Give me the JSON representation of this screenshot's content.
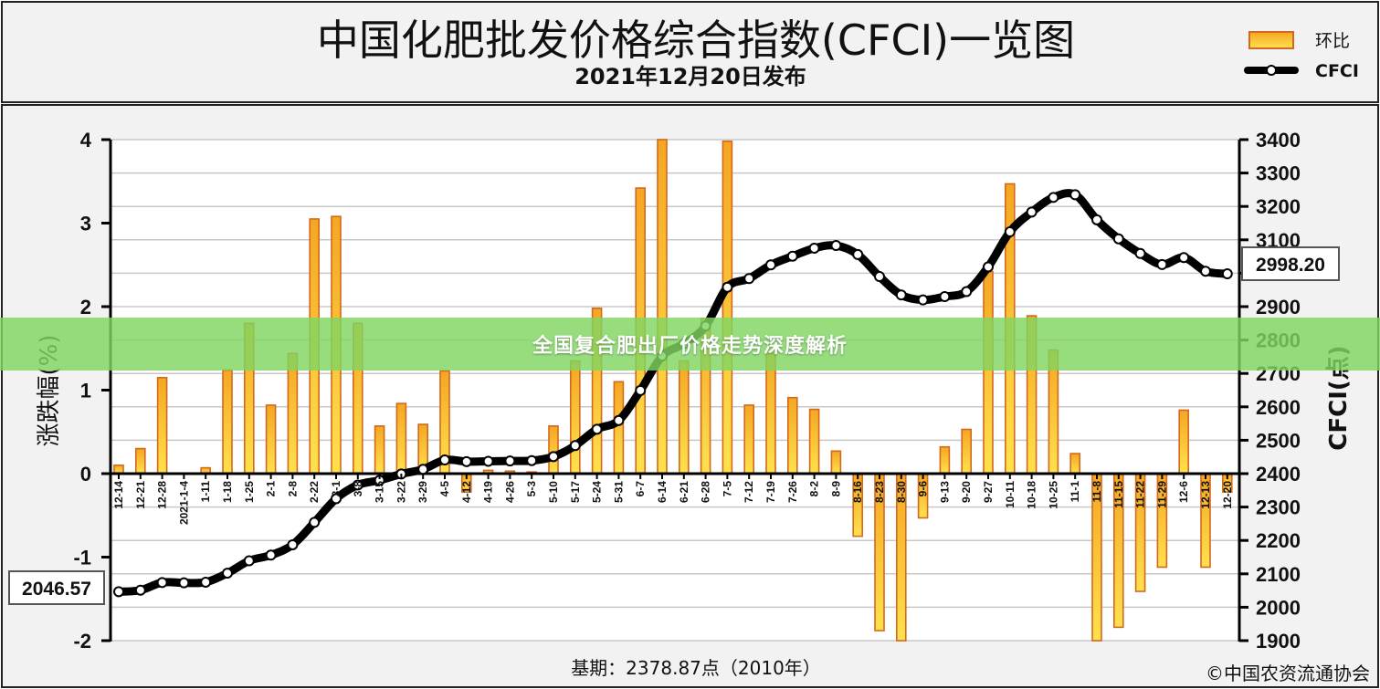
{
  "header": {
    "title": "中国化肥批发价格综合指数(CFCI)一览图",
    "subtitle": "2021年12月20日发布"
  },
  "legend": {
    "bar_label": "环比",
    "line_label": "CFCI"
  },
  "callouts": {
    "start_value": "2046.57",
    "end_value": "2998.20"
  },
  "footer": {
    "base_period": "基期：2378.87点（2010年）",
    "source": "©中国农资流通协会"
  },
  "banner": {
    "text": "全国复合肥出厂价格走势深度解析"
  },
  "colors": {
    "bar_fill_top": "#f5a623",
    "bar_fill_bottom": "#ffe14d",
    "bar_stroke": "#d2691e",
    "line": "#000000",
    "plot_bg": "#ffffff",
    "grid": "#c8c8c8",
    "banner": "#80d662"
  },
  "chart_data": {
    "type": "bar+line",
    "title": "中国化肥批发价格综合指数(CFCI)一览图",
    "subtitle": "2021年12月20日发布",
    "xlabel": "",
    "ylabel_left": "涨跌幅(%)",
    "ylabel_right": "CFCI(点)",
    "ylim_left": [
      -2,
      4
    ],
    "ylim_right": [
      1900,
      3400
    ],
    "yticks_left": [
      -2,
      -1,
      0,
      1,
      2,
      3,
      4
    ],
    "yticks_right": [
      1900,
      2000,
      2100,
      2200,
      2300,
      2400,
      2500,
      2600,
      2700,
      2800,
      2900,
      3000,
      3100,
      3200,
      3300,
      3400
    ],
    "grid": true,
    "legend_position": "top-right",
    "categories": [
      "12-14",
      "12-21",
      "12-28",
      "2021-1-4",
      "1-11",
      "1-18",
      "1-25",
      "2-1",
      "2-8",
      "2-22",
      "3-1",
      "3-8",
      "3-15",
      "3-22",
      "3-29",
      "4-5",
      "4-12",
      "4-19",
      "4-26",
      "5-3",
      "5-10",
      "5-17",
      "5-24",
      "5-31",
      "6-7",
      "6-14",
      "6-21",
      "6-28",
      "7-5",
      "7-12",
      "7-19",
      "7-26",
      "8-2",
      "8-9",
      "8-16",
      "8-23",
      "8-30",
      "9-6",
      "9-13",
      "9-20",
      "9-27",
      "10-11",
      "10-18",
      "10-25",
      "11-1",
      "11-8",
      "11-15",
      "11-22",
      "11-29",
      "12-6",
      "12-13",
      "12-20"
    ],
    "series": [
      {
        "name": "环比",
        "axis": "left",
        "values": [
          0.1,
          0.3,
          1.15,
          0.0,
          0.07,
          1.24,
          1.8,
          0.82,
          1.44,
          3.05,
          3.08,
          1.8,
          0.57,
          0.84,
          0.59,
          1.23,
          -0.22,
          0.04,
          0.03,
          0.02,
          0.57,
          1.35,
          1.98,
          1.1,
          3.42,
          4.0,
          1.35,
          1.86,
          3.98,
          0.82,
          1.44,
          0.91,
          0.77,
          0.27,
          -0.75,
          -1.88,
          -2.0,
          -0.53,
          0.32,
          0.53,
          2.42,
          3.47,
          1.89,
          1.48,
          0.24,
          -2.0,
          -1.84,
          -1.41,
          -1.12,
          0.76,
          -1.12,
          -0.22
        ]
      },
      {
        "name": "CFCI",
        "axis": "right",
        "values": [
          2046.57,
          2051,
          2074,
          2073,
          2075,
          2102,
          2139,
          2156,
          2187,
          2254,
          2325,
          2366,
          2380,
          2399,
          2413,
          2441,
          2436,
          2437,
          2438,
          2439,
          2451,
          2484,
          2533,
          2559,
          2649,
          2752,
          2789,
          2842,
          2958,
          2984,
          3025,
          3051,
          3075,
          3083,
          3056,
          2990,
          2935,
          2920,
          2930,
          2945,
          3019,
          3124,
          3183,
          3227,
          3235,
          3160,
          3103,
          3059,
          3026,
          3047,
          3006,
          2998.2
        ]
      }
    ]
  }
}
